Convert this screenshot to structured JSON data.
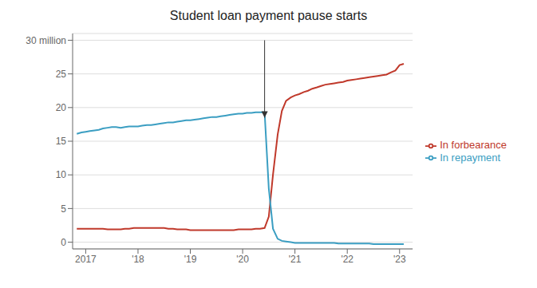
{
  "chart_data": {
    "type": "line",
    "title": "Student loan payment pause starts",
    "x": [
      2016.83,
      2016.92,
      2017.0,
      2017.08,
      2017.17,
      2017.25,
      2017.33,
      2017.42,
      2017.5,
      2017.58,
      2017.67,
      2017.75,
      2017.83,
      2017.92,
      2018.0,
      2018.08,
      2018.17,
      2018.25,
      2018.33,
      2018.42,
      2018.5,
      2018.58,
      2018.67,
      2018.75,
      2018.83,
      2018.92,
      2019.0,
      2019.08,
      2019.17,
      2019.25,
      2019.33,
      2019.42,
      2019.5,
      2019.58,
      2019.67,
      2019.75,
      2019.83,
      2019.92,
      2020.0,
      2020.08,
      2020.17,
      2020.25,
      2020.33,
      2020.42,
      2020.5,
      2020.58,
      2020.67,
      2020.75,
      2020.83,
      2020.92,
      2021.0,
      2021.08,
      2021.17,
      2021.25,
      2021.33,
      2021.42,
      2021.5,
      2021.58,
      2021.67,
      2021.75,
      2021.83,
      2021.92,
      2022.0,
      2022.08,
      2022.17,
      2022.25,
      2022.33,
      2022.42,
      2022.5,
      2022.58,
      2022.67,
      2022.75,
      2022.83,
      2022.92,
      2023.0,
      2023.08
    ],
    "series": [
      {
        "name": "In forbearance",
        "color": "#c0392b",
        "values": [
          2.0,
          2.0,
          2.0,
          2.0,
          2.0,
          2.0,
          2.0,
          1.9,
          1.9,
          1.9,
          1.9,
          2.0,
          2.0,
          2.1,
          2.1,
          2.1,
          2.1,
          2.1,
          2.1,
          2.1,
          2.1,
          2.0,
          2.0,
          1.9,
          1.9,
          1.9,
          1.8,
          1.8,
          1.8,
          1.8,
          1.8,
          1.8,
          1.8,
          1.8,
          1.8,
          1.8,
          1.8,
          1.9,
          1.9,
          1.9,
          1.9,
          2.0,
          2.0,
          2.1,
          3.8,
          10.0,
          16.0,
          19.5,
          21.0,
          21.5,
          21.8,
          22.0,
          22.3,
          22.5,
          22.8,
          23.0,
          23.2,
          23.4,
          23.5,
          23.6,
          23.7,
          23.8,
          24.0,
          24.1,
          24.2,
          24.3,
          24.4,
          24.5,
          24.6,
          24.7,
          24.8,
          24.9,
          25.2,
          25.5,
          26.3,
          26.5
        ]
      },
      {
        "name": "In repayment",
        "color": "#3b9ec2",
        "values": [
          16.1,
          16.3,
          16.4,
          16.5,
          16.6,
          16.7,
          16.9,
          17.0,
          17.1,
          17.1,
          17.0,
          17.1,
          17.2,
          17.2,
          17.2,
          17.3,
          17.4,
          17.4,
          17.5,
          17.6,
          17.7,
          17.8,
          17.8,
          17.9,
          18.0,
          18.1,
          18.1,
          18.2,
          18.3,
          18.4,
          18.5,
          18.6,
          18.6,
          18.7,
          18.8,
          18.9,
          19.0,
          19.1,
          19.1,
          19.2,
          19.2,
          19.3,
          19.3,
          19.3,
          8.0,
          2.0,
          0.5,
          0.2,
          0.1,
          0.0,
          -0.1,
          -0.1,
          -0.1,
          -0.1,
          -0.1,
          -0.1,
          -0.1,
          -0.1,
          -0.1,
          -0.1,
          -0.2,
          -0.2,
          -0.2,
          -0.2,
          -0.2,
          -0.2,
          -0.2,
          -0.2,
          -0.3,
          -0.3,
          -0.3,
          -0.3,
          -0.3,
          -0.3,
          -0.3,
          -0.3
        ]
      }
    ],
    "xlim": [
      2016.75,
      2023.25
    ],
    "xticks": [
      2017,
      {
        "value": 2018,
        "label": "'18"
      },
      {
        "value": 2019,
        "label": "'19"
      },
      {
        "value": 2020,
        "label": "'20"
      },
      {
        "value": 2021,
        "label": "'21"
      },
      {
        "value": 2022,
        "label": "'22"
      },
      {
        "value": 2023,
        "label": "'23"
      }
    ],
    "ylim": [
      -1,
      31
    ],
    "yticks": [
      0,
      5,
      10,
      15,
      20,
      25,
      {
        "value": 30,
        "label": "30 million"
      }
    ],
    "grid": "y",
    "legend": "right",
    "annotations": [
      {
        "type": "arrow",
        "x": 2020.42,
        "y_from": 30,
        "y_to": 18.5
      }
    ]
  }
}
